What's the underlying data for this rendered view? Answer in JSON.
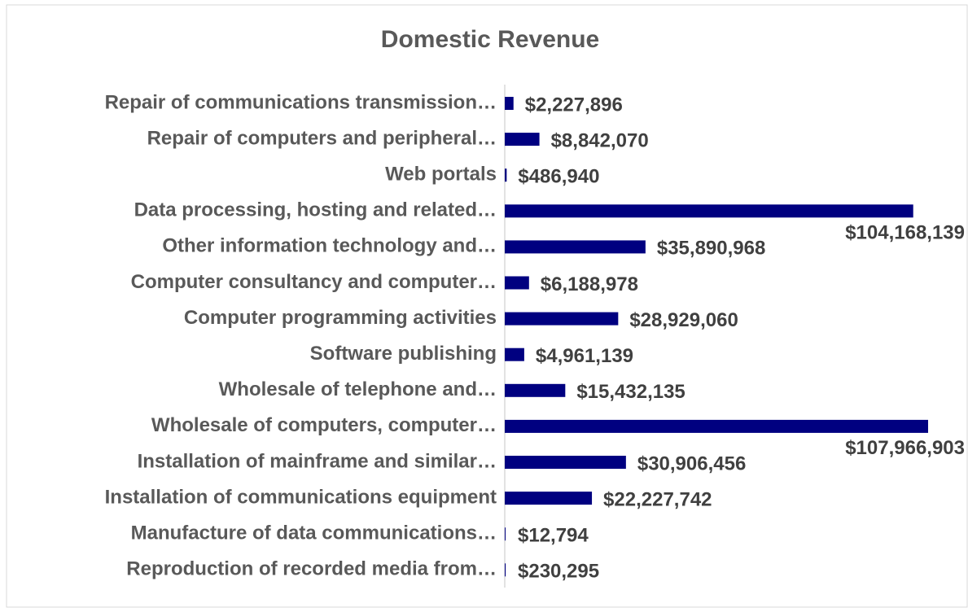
{
  "chart_data": {
    "type": "bar",
    "orientation": "horizontal",
    "title": "Domestic Revenue",
    "color": "#000080",
    "categories": [
      "Repair of communications transmission…",
      "Repair of computers and peripheral…",
      "Web portals",
      "Data processing, hosting and related…",
      "Other information technology and…",
      "Computer consultancy and computer…",
      "Computer programming activities",
      "Software publishing",
      "Wholesale of telephone and…",
      "Wholesale of computers, computer…",
      "Installation of mainframe and similar…",
      "Installation of communications equipment",
      "Manufacture of data communications…",
      "Reproduction of recorded media from…"
    ],
    "values": [
      2227896,
      8842070,
      486940,
      104168139,
      35890968,
      6188978,
      28929060,
      4961139,
      15432135,
      107966903,
      30906456,
      22227742,
      12794,
      230295
    ],
    "value_labels": [
      "$2,227,896",
      "$8,842,070",
      "$486,940",
      "$104,168,139",
      "$35,890,968",
      "$6,188,978",
      "$28,929,060",
      "$4,961,139",
      "$15,432,135",
      "$107,966,903",
      "$30,906,456",
      "$22,227,742",
      "$12,794",
      "$230,295"
    ]
  }
}
